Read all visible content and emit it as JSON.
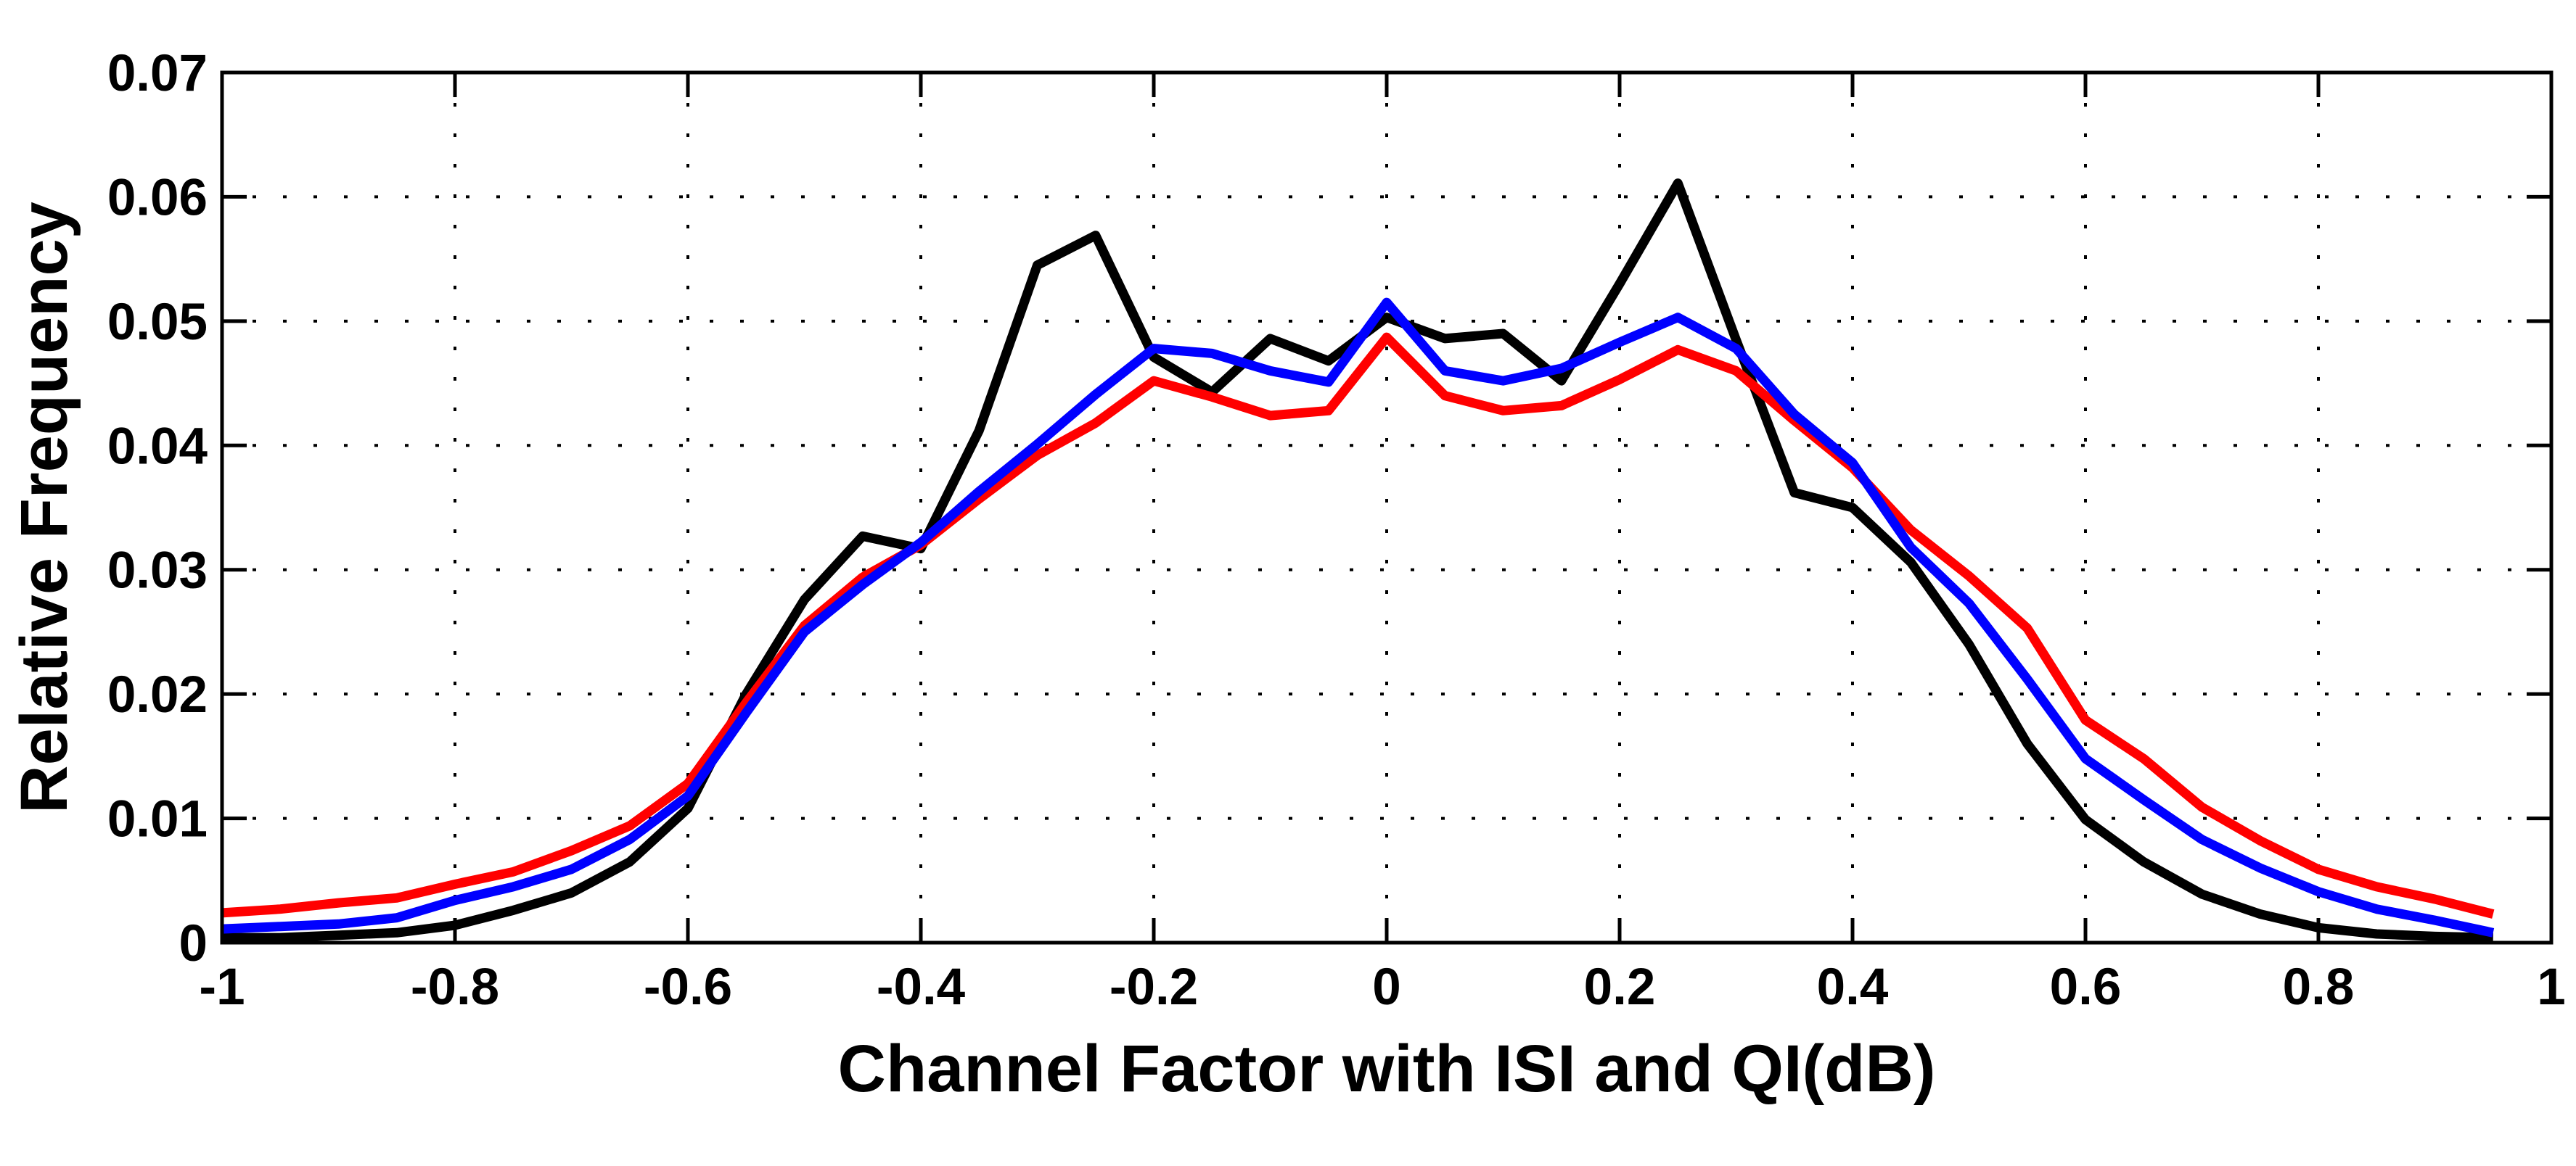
{
  "chart_data": {
    "type": "line",
    "title": "",
    "xlabel": "Channel Factor with ISI and QI(dB)",
    "ylabel": "Relative Frequency",
    "xlim": [
      -1,
      1
    ],
    "ylim": [
      0,
      0.07
    ],
    "grid": true,
    "grid_style": "dotted",
    "legend": "none",
    "background_color": "#ffffff",
    "axis_color": "#000000",
    "xtick_values": [
      -1,
      -0.8,
      -0.6,
      -0.4,
      -0.2,
      0,
      0.2,
      0.4,
      0.6,
      0.8,
      1
    ],
    "xtick_labels": [
      "-1",
      "-0.8",
      "-0.6",
      "-0.4",
      "-0.2",
      "0",
      "0.2",
      "0.4",
      "0.6",
      "0.8",
      "1"
    ],
    "ytick_values": [
      0,
      0.01,
      0.02,
      0.03,
      0.04,
      0.05,
      0.06,
      0.07
    ],
    "ytick_labels": [
      "0",
      "0.01",
      "0.02",
      "0.03",
      "0.04",
      "0.05",
      "0.06",
      "0.07"
    ],
    "x": [
      -1,
      -0.95,
      -0.9,
      -0.85,
      -0.8,
      -0.75,
      -0.7,
      -0.65,
      -0.6,
      -0.55,
      -0.5,
      -0.45,
      -0.4,
      -0.35,
      -0.3,
      -0.25,
      -0.2,
      -0.15,
      -0.1,
      -0.05,
      0,
      0.05,
      0.1,
      0.15,
      0.2,
      0.25,
      0.3,
      0.35,
      0.4,
      0.45,
      0.5,
      0.55,
      0.6,
      0.65,
      0.7,
      0.75,
      0.8,
      0.85,
      0.9,
      0.95
    ],
    "series": [
      {
        "name": "black",
        "color": "#000000",
        "values": [
          0.0004,
          0.0004,
          0.0006,
          0.0008,
          0.0014,
          0.0026,
          0.004,
          0.0065,
          0.0108,
          0.02,
          0.0276,
          0.0327,
          0.0317,
          0.0412,
          0.0545,
          0.0569,
          0.0471,
          0.0443,
          0.0486,
          0.0468,
          0.0503,
          0.0486,
          0.049,
          0.0452,
          0.053,
          0.0611,
          0.0485,
          0.0362,
          0.035,
          0.0306,
          0.024,
          0.016,
          0.0099,
          0.0065,
          0.0039,
          0.0023,
          0.0012,
          0.0007,
          0.0005,
          0.0004
        ]
      },
      {
        "name": "red",
        "color": "#ff0000",
        "values": [
          0.0024,
          0.0027,
          0.0032,
          0.0036,
          0.0047,
          0.0057,
          0.0074,
          0.0094,
          0.0128,
          0.0193,
          0.0255,
          0.0294,
          0.032,
          0.0357,
          0.0392,
          0.0418,
          0.0452,
          0.0439,
          0.0424,
          0.0428,
          0.0487,
          0.044,
          0.0428,
          0.0432,
          0.0453,
          0.0477,
          0.046,
          0.042,
          0.0382,
          0.0332,
          0.0295,
          0.0253,
          0.0179,
          0.0148,
          0.0109,
          0.0082,
          0.0059,
          0.0045,
          0.0035,
          0.0023
        ]
      },
      {
        "name": "blue",
        "color": "#0000ff",
        "values": [
          0.0011,
          0.0013,
          0.0015,
          0.002,
          0.0034,
          0.0045,
          0.0059,
          0.0083,
          0.0118,
          0.0185,
          0.025,
          0.0288,
          0.0322,
          0.0363,
          0.0401,
          0.0441,
          0.0478,
          0.0474,
          0.046,
          0.0451,
          0.0515,
          0.046,
          0.0452,
          0.0462,
          0.0483,
          0.0503,
          0.0478,
          0.0425,
          0.0386,
          0.0318,
          0.0273,
          0.0212,
          0.0148,
          0.0115,
          0.0083,
          0.006,
          0.0041,
          0.0027,
          0.0018,
          0.0008
        ]
      }
    ]
  }
}
